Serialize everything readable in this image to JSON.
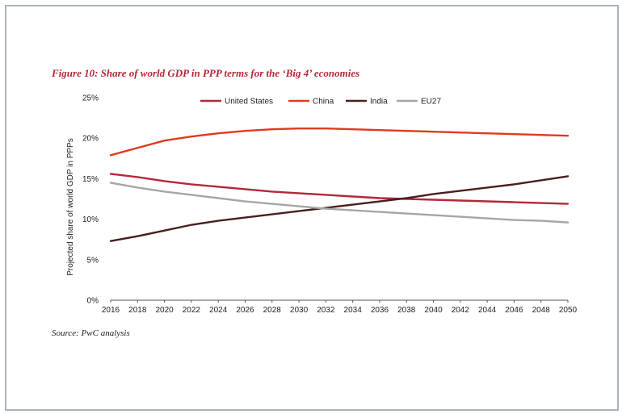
{
  "figure_title": "Figure 10: Share of world GDP in PPP terms for the ‘Big 4’ economies",
  "source": "Source: PwC analysis",
  "chart_data": {
    "type": "line",
    "title": "",
    "xlabel": "",
    "ylabel": "Projected share of world GDP in PPPs",
    "x": [
      2016,
      2018,
      2020,
      2022,
      2024,
      2026,
      2028,
      2030,
      2032,
      2034,
      2036,
      2038,
      2040,
      2042,
      2044,
      2046,
      2048,
      2050
    ],
    "x_ticks": [
      "2016",
      "2018",
      "2020",
      "2022",
      "2024",
      "2026",
      "2028",
      "2030",
      "2032",
      "2034",
      "2036",
      "2038",
      "2040",
      "2042",
      "2044",
      "2046",
      "2048",
      "2050"
    ],
    "ylim": [
      0,
      25
    ],
    "y_ticks": [
      "0%",
      "5%",
      "10%",
      "15%",
      "20%",
      "25%"
    ],
    "y_tick_values": [
      0,
      5,
      10,
      15,
      20,
      25
    ],
    "grid": false,
    "legend_position": "top",
    "series": [
      {
        "name": "United States",
        "color": "#b5273a",
        "values": [
          15.6,
          15.2,
          14.7,
          14.3,
          14.0,
          13.7,
          13.4,
          13.2,
          13.0,
          12.8,
          12.6,
          12.5,
          12.4,
          12.3,
          12.2,
          12.1,
          12.0,
          11.9
        ]
      },
      {
        "name": "China",
        "color": "#e03a1f",
        "values": [
          17.9,
          18.8,
          19.7,
          20.2,
          20.6,
          20.9,
          21.1,
          21.2,
          21.2,
          21.1,
          21.0,
          20.9,
          20.8,
          20.7,
          20.6,
          20.5,
          20.4,
          20.3
        ]
      },
      {
        "name": "India",
        "color": "#4a1e1e",
        "values": [
          7.3,
          7.9,
          8.6,
          9.3,
          9.8,
          10.2,
          10.6,
          11.0,
          11.4,
          11.8,
          12.2,
          12.6,
          13.1,
          13.5,
          13.9,
          14.3,
          14.8,
          15.3
        ]
      },
      {
        "name": "EU27",
        "color": "#a6a6a6",
        "values": [
          14.5,
          13.9,
          13.4,
          13.0,
          12.6,
          12.2,
          11.9,
          11.6,
          11.3,
          11.1,
          10.9,
          10.7,
          10.5,
          10.3,
          10.1,
          9.9,
          9.8,
          9.6
        ]
      }
    ]
  }
}
